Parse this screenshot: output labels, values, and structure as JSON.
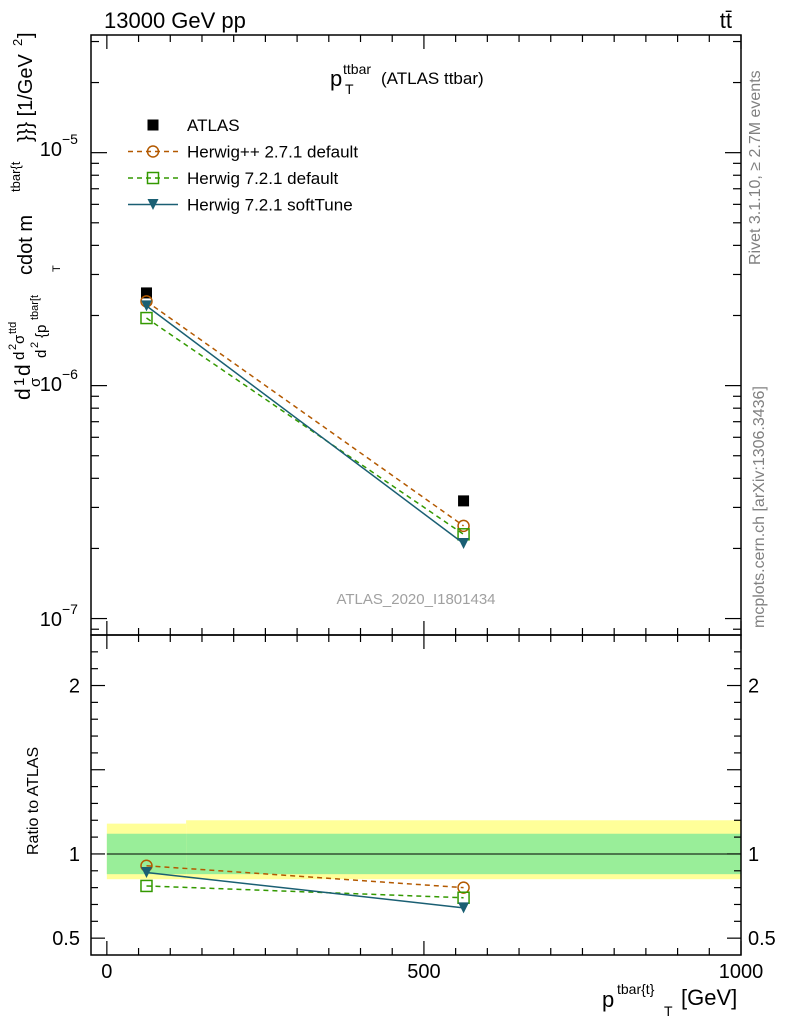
{
  "header": {
    "energy": "13000 GeV pp",
    "process": "tt̄"
  },
  "plot": {
    "title_main": "p",
    "title_sup": "ttbar",
    "title_sub": "T",
    "title_rest": "(ATLAS ttbar)"
  },
  "watermark": "ATLAS_2020_I1801434",
  "side_labels": {
    "rivet": "Rivet 3.1.10, ≥ 2.7M events",
    "mcplots": "mcplots.cern.ch [arXiv:1306.3436]"
  },
  "axes": {
    "ylabel_main": "d¹/σd d²σ^tid / d² {p^tbar[t] ...} cdot m^tbar{t}}} [1/GeV²]",
    "ylabel_main_parts": {
      "a": "d",
      "b": "1",
      "c": "σ",
      "d": "d",
      "e": "d",
      "f": "2",
      "g": "σ",
      "h": "ttd",
      "i": "d",
      "j": "2",
      "k": "{p",
      "l": "tbar[t",
      "m": "T",
      "n": "cdot m",
      "o": "tbar{t",
      "p": "}}} [1/GeV",
      "q": "2",
      "r": "]"
    },
    "ylabel_ratio": "Ratio to ATLAS",
    "xlabel_main": "p",
    "xlabel_sup": "tbar{t}",
    "xlabel_sub": "T",
    "xlabel_rest": "[GeV]",
    "xticks": [
      "0",
      "500",
      "1000"
    ],
    "yticks_main": [
      {
        "base": "10",
        "exp": "−5"
      },
      {
        "base": "10",
        "exp": "−6"
      },
      {
        "base": "10",
        "exp": "−7"
      }
    ],
    "yticks_ratio": [
      "2",
      "1",
      "0.5"
    ],
    "yticks_ratio_right": [
      "2",
      "1",
      "0.5"
    ]
  },
  "legend": [
    {
      "label": "ATLAS",
      "color": "#000000",
      "marker": "square-filled",
      "line": "none"
    },
    {
      "label": "Herwig++ 2.7.1 default",
      "color": "#b35900",
      "marker": "circle-open",
      "line": "dashed"
    },
    {
      "label": "Herwig 7.2.1 default",
      "color": "#339900",
      "marker": "square-open",
      "line": "dashed"
    },
    {
      "label": "Herwig 7.2.1 softTune",
      "color": "#1a5f73",
      "marker": "triangle-down-filled",
      "line": "solid"
    }
  ],
  "chart_data": {
    "type": "line",
    "xlabel": "p_T^{tbar{t}} [GeV]",
    "ylabel": "1/σ d²σ/d(p_T) d(m) [1/GeV²]",
    "ylog": true,
    "xlim": [
      -25,
      1000
    ],
    "ylim": [
      8.5e-08,
      3.2e-05
    ],
    "ratio_ylim": [
      0.4,
      2.3
    ],
    "x": [
      62.5,
      562.5
    ],
    "bins": [
      [
        0,
        125
      ],
      [
        125,
        1000
      ]
    ],
    "series": [
      {
        "name": "ATLAS",
        "values": [
          2.5e-06,
          3.2e-07
        ],
        "ratio": [
          1,
          1
        ]
      },
      {
        "name": "Herwig++ 2.7.1 default",
        "values": [
          2.3e-06,
          2.5e-07
        ],
        "ratio": [
          0.93,
          0.8
        ]
      },
      {
        "name": "Herwig 7.2.1 default",
        "values": [
          1.95e-06,
          2.3e-07
        ],
        "ratio": [
          0.81,
          0.74
        ]
      },
      {
        "name": "Herwig 7.2.1 softTune",
        "values": [
          2.2e-06,
          2.1e-07
        ],
        "ratio": [
          0.89,
          0.68
        ]
      }
    ],
    "ratio_band_inner": [
      [
        0.88,
        1.12
      ],
      [
        0.88,
        1.12
      ]
    ],
    "ratio_band_outer": [
      [
        0.85,
        1.18
      ],
      [
        0.85,
        1.2
      ]
    ]
  }
}
